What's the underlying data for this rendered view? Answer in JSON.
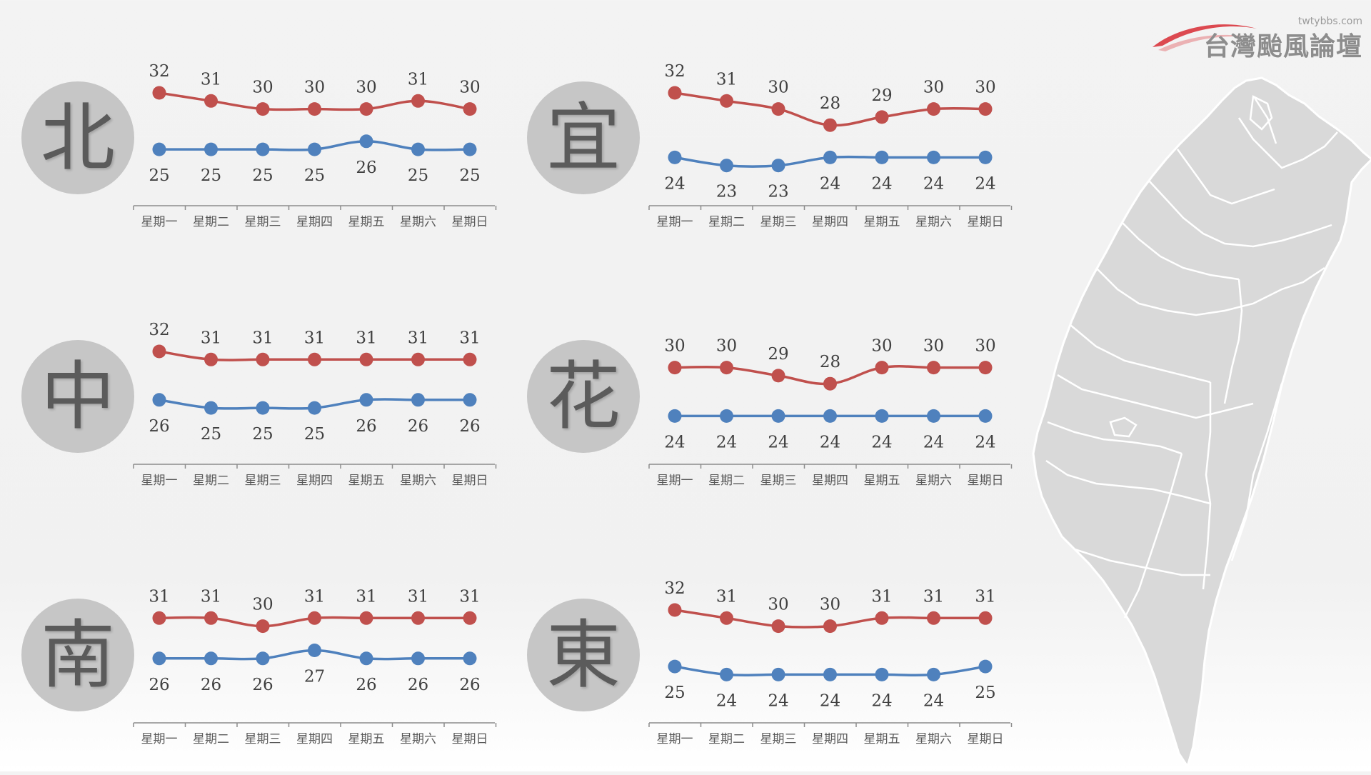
{
  "logo": {
    "url": "twtybbs.com",
    "name": "台灣颱風論壇",
    "swoosh_color": "#d9363e"
  },
  "colors": {
    "high": "#c0504d",
    "low": "#4f81bd",
    "circle": "#c6c6c6",
    "map_fill": "#d9d9d9",
    "map_border": "#ffffff"
  },
  "chart_data": [
    {
      "type": "line",
      "region": "北",
      "categories": [
        "星期一",
        "星期二",
        "星期三",
        "星期四",
        "星期五",
        "星期六",
        "星期日"
      ],
      "series": [
        {
          "values": [
            32,
            31,
            30,
            30,
            30,
            31,
            30
          ]
        },
        {
          "values": [
            25,
            25,
            25,
            25,
            26,
            25,
            25
          ]
        }
      ]
    },
    {
      "type": "line",
      "region": "宜",
      "categories": [
        "星期一",
        "星期二",
        "星期三",
        "星期四",
        "星期五",
        "星期六",
        "星期日"
      ],
      "series": [
        {
          "values": [
            32,
            31,
            30,
            28,
            29,
            30,
            30
          ]
        },
        {
          "values": [
            24,
            23,
            23,
            24,
            24,
            24,
            24
          ]
        }
      ]
    },
    {
      "type": "line",
      "region": "中",
      "categories": [
        "星期一",
        "星期二",
        "星期三",
        "星期四",
        "星期五",
        "星期六",
        "星期日"
      ],
      "series": [
        {
          "values": [
            32,
            31,
            31,
            31,
            31,
            31,
            31
          ]
        },
        {
          "values": [
            26,
            25,
            25,
            25,
            26,
            26,
            26
          ]
        }
      ]
    },
    {
      "type": "line",
      "region": "花",
      "categories": [
        "星期一",
        "星期二",
        "星期三",
        "星期四",
        "星期五",
        "星期六",
        "星期日"
      ],
      "series": [
        {
          "values": [
            30,
            30,
            29,
            28,
            30,
            30,
            30
          ]
        },
        {
          "values": [
            24,
            24,
            24,
            24,
            24,
            24,
            24
          ]
        }
      ]
    },
    {
      "type": "line",
      "region": "南",
      "categories": [
        "星期一",
        "星期二",
        "星期三",
        "星期四",
        "星期五",
        "星期六",
        "星期日"
      ],
      "series": [
        {
          "values": [
            31,
            31,
            30,
            31,
            31,
            31,
            31
          ]
        },
        {
          "values": [
            26,
            26,
            26,
            27,
            26,
            26,
            26
          ]
        }
      ]
    },
    {
      "type": "line",
      "region": "東",
      "categories": [
        "星期一",
        "星期二",
        "星期三",
        "星期四",
        "星期五",
        "星期六",
        "星期日"
      ],
      "series": [
        {
          "values": [
            32,
            31,
            30,
            30,
            31,
            31,
            31
          ]
        },
        {
          "values": [
            25,
            24,
            24,
            24,
            24,
            24,
            25
          ]
        }
      ]
    }
  ]
}
